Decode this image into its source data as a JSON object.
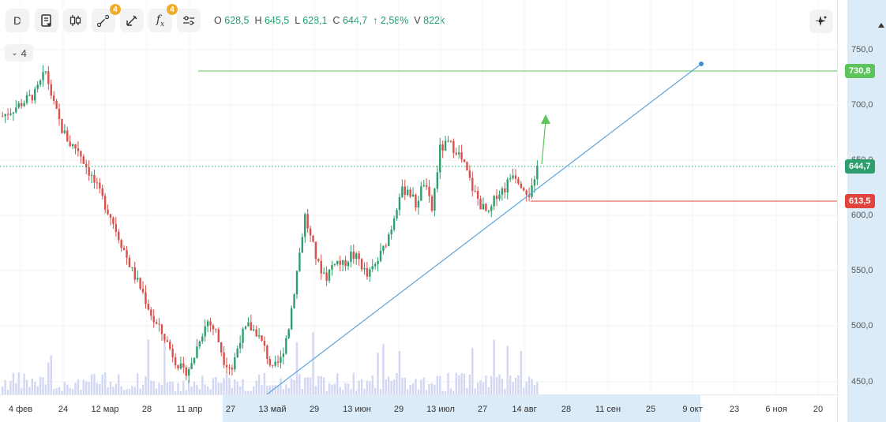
{
  "toolbar": {
    "interval_label": "D",
    "drawing_tools_badge": "4",
    "indicators_badge": "4"
  },
  "ohlc": {
    "o_label": "O",
    "o": "628,5",
    "h_label": "H",
    "h": "645,5",
    "l_label": "L",
    "l": "628,1",
    "c_label": "C",
    "c": "644,7",
    "change": "↑ 2,58%",
    "v_label": "V",
    "v": "822k"
  },
  "collapse_label": "4",
  "colors": {
    "up": "#2f9e6e",
    "down": "#d8504c",
    "accent_green": "#5cc45a",
    "price_red": "#e0443c",
    "trendline": "#5aa6e0",
    "volume": "#d2d7f3",
    "axis_highlight": "#dcebf8"
  },
  "price_axis": {
    "ticks": [
      "750,0",
      "700,0",
      "650,0",
      "600,0",
      "550,0",
      "500,0",
      "450,0"
    ],
    "labels": [
      {
        "text": "730,8",
        "color": "#5cc45a"
      },
      {
        "text": "644,7",
        "color": "#2f9e6e"
      },
      {
        "text": "613,5",
        "color": "#e0443c"
      }
    ]
  },
  "time_axis": {
    "ticks": [
      "4 фев",
      "24",
      "12 мар",
      "28",
      "11 апр",
      "27",
      "13 май",
      "29",
      "13 июн",
      "29",
      "13 июл",
      "27",
      "14 авг",
      "28",
      "11 сен",
      "25",
      "9 окт",
      "23",
      "6 ноя",
      "20"
    ]
  },
  "chart_data": {
    "type": "candlestick",
    "ylim": [
      440,
      760
    ],
    "horizontal_lines": [
      730.8,
      644.7,
      613.5
    ],
    "trendline": {
      "from": {
        "x": "late apr",
        "y": 440
      },
      "to": {
        "x": "9 окт",
        "y": 735
      }
    },
    "last": {
      "open": 628.5,
      "high": 645.5,
      "low": 628.1,
      "close": 644.7,
      "change_pct": 2.58,
      "volume": "822k"
    }
  }
}
